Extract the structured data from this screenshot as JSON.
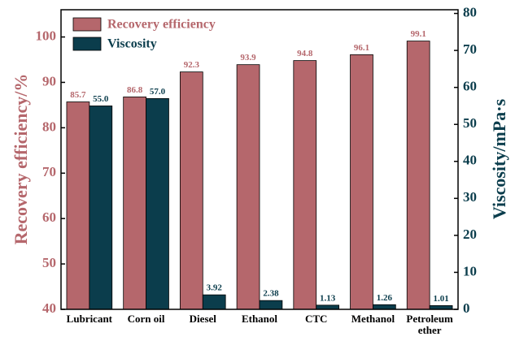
{
  "chart_data": {
    "type": "bar",
    "categories": [
      "Lubricant",
      "Corn oil",
      "Diesel",
      "Ethanol",
      "CTC",
      "Methanol",
      "Petroleum ether"
    ],
    "series": [
      {
        "name": "Recovery efficiency",
        "color": "#b5676c",
        "values": [
          85.7,
          86.8,
          92.3,
          93.9,
          94.8,
          96.1,
          99.1
        ]
      },
      {
        "name": "Viscosity",
        "color": "#0b3d4c",
        "axis": "y2",
        "values": [
          55,
          57,
          3.92,
          2.38,
          1.13,
          1.26,
          1.01
        ],
        "value_labels": [
          "55.0",
          "57.0",
          "3.92",
          "2.38",
          "1.13",
          "1.26",
          "1.01"
        ]
      }
    ],
    "ylabel": "Recovery efficiency/%",
    "y2label": "Viscosity/mPa·s",
    "ylim": [
      40,
      106
    ],
    "yticks": [
      40,
      50,
      60,
      70,
      80,
      90,
      100
    ],
    "y2lim": [
      0,
      81
    ],
    "y2ticks": [
      0,
      10,
      20,
      30,
      40,
      50,
      60,
      70,
      80
    ],
    "legend": "upper left",
    "ycolor": "#b5676c",
    "y2color": "#0b3d4c"
  }
}
